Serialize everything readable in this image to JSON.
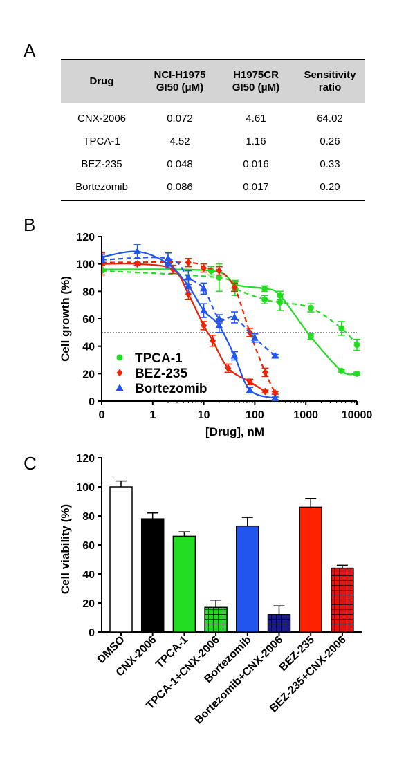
{
  "panels": {
    "a": "A",
    "b": "B",
    "c": "C"
  },
  "table": {
    "headers": [
      [
        "Drug"
      ],
      [
        "NCI-H1975",
        "GI50 (μM)"
      ],
      [
        "H1975CR",
        "GI50 (μM)"
      ],
      [
        "Sensitivity",
        "ratio"
      ]
    ],
    "rows": [
      [
        "CNX-2006",
        "0.072",
        "4.61",
        "64.02"
      ],
      [
        "TPCA-1",
        "4.52",
        "1.16",
        "0.26"
      ],
      [
        "BEZ-235",
        "0.048",
        "0.016",
        "0.33"
      ],
      [
        "Bortezomib",
        "0.086",
        "0.017",
        "0.20"
      ]
    ]
  },
  "chart_data": [
    {
      "type": "scatter",
      "xlabel": "[Drug], nM",
      "ylabel": "Cell growth (%)",
      "x_scale": "log",
      "x_ticks": [
        "0",
        "1",
        "10",
        "100",
        "1000",
        "10000"
      ],
      "y_ticks": [
        0,
        20,
        40,
        60,
        80,
        100,
        120
      ],
      "ylim": [
        0,
        120
      ],
      "reference_line": {
        "y": 50,
        "style": "dotted"
      },
      "legend_position": "lower-left",
      "series": [
        {
          "name": "TPCA-1",
          "color": "#22dd22",
          "marker": "circle",
          "solid": {
            "x": [
              0,
              14,
              41,
              156,
              313,
              1250,
              5000,
              10000
            ],
            "y": [
              96,
              95,
              85,
              82,
              77,
              47,
              22,
              20
            ],
            "err": [
              0,
              3,
              3,
              2,
              3,
              2,
              1,
              1
            ]
          },
          "dashed": {
            "x": [
              0,
              20,
              41,
              156,
              313,
              1250,
              5000,
              10000
            ],
            "y": [
              95,
              90,
              82,
              74,
              72,
              68,
              53,
              41
            ],
            "err": [
              0,
              10,
              5,
              3,
              6,
              3,
              5,
              4
            ]
          }
        },
        {
          "name": "BEZ-235",
          "color": "#ee2200",
          "marker": "diamond",
          "solid": {
            "x": [
              0,
              0.5,
              2.5,
              5,
              10,
              15,
              30,
              80,
              160
            ],
            "y": [
              100,
              100,
              96,
              78,
              55,
              44,
              24,
              14,
              7
            ],
            "err": [
              8,
              1,
              3,
              4,
              3,
              4,
              3,
              2,
              1
            ]
          },
          "dashed": {
            "x": [
              0,
              5,
              10,
              20,
              40,
              80,
              160,
              250
            ],
            "y": [
              101,
              101,
              97,
              95,
              83,
              50,
              21,
              6
            ],
            "err": [
              2,
              3,
              3,
              3,
              3,
              3,
              3,
              1
            ]
          }
        },
        {
          "name": "Bortezomib",
          "color": "#2255ee",
          "marker": "triangle",
          "solid": {
            "x": [
              0,
              0.5,
              2,
              5,
              10,
              20,
              40,
              80,
              250
            ],
            "y": [
              105,
              109,
              100,
              84,
              66,
              55,
              33,
              8,
              2
            ],
            "err": [
              2,
              5,
              3,
              5,
              5,
              5,
              3,
              2,
              1
            ]
          },
          "dashed": {
            "x": [
              0,
              2,
              5,
              10,
              20,
              40,
              100,
              250
            ],
            "y": [
              103,
              104,
              90,
              82,
              60,
              61,
              46,
              33
            ],
            "err": [
              2,
              4,
              5,
              4,
              3,
              4,
              3,
              1
            ]
          }
        }
      ]
    },
    {
      "type": "bar",
      "ylabel": "Cell viability  (%)",
      "ylim": [
        0,
        120
      ],
      "y_ticks": [
        0,
        20,
        40,
        60,
        80,
        100,
        120
      ],
      "categories": [
        "DMSO",
        "CNX-2006",
        "TPCA-1",
        "TPCA-1+CNX-2006",
        "Bortezomib",
        "Bortezomib+CNX-2006",
        "BEZ-235",
        "BEZ-235+CNX-2006"
      ],
      "values": [
        100,
        78,
        66,
        17,
        73,
        12,
        86,
        44
      ],
      "errors": [
        4,
        4,
        3,
        5,
        6,
        6,
        6,
        2
      ],
      "colors": [
        "#ffffff",
        "#000000",
        "#22dd22",
        "#22dd22",
        "#2255ee",
        "#1a1a99",
        "#ff2200",
        "#ee1111"
      ],
      "hatched": [
        false,
        false,
        false,
        true,
        false,
        true,
        false,
        true
      ]
    }
  ]
}
